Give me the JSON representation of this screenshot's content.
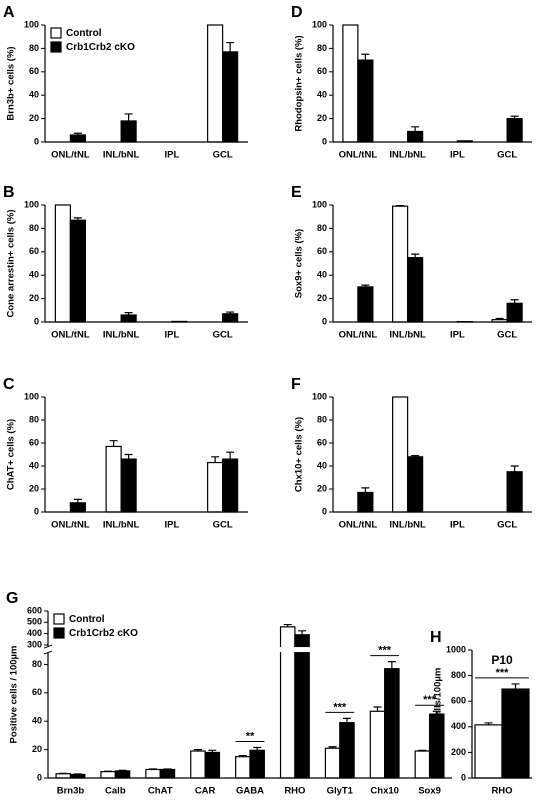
{
  "chart_data": [
    {
      "type": "bar",
      "label": "A",
      "ylabel": "Brn3b+ cells (%)",
      "categories": [
        "ONL/tNL",
        "INL/bNL",
        "IPL",
        "GCL"
      ],
      "ylim": [
        0,
        100
      ],
      "yticks": [
        0,
        20,
        40,
        60,
        80,
        100
      ],
      "legend": "upper left",
      "series": [
        {
          "name": "Control",
          "color": "#ffffff",
          "values": [
            0,
            0,
            0,
            100
          ],
          "errors": [
            null,
            null,
            null,
            null
          ]
        },
        {
          "name": "Crb1Crb2 cKO",
          "color": "#000000",
          "values": [
            6,
            18,
            0,
            77
          ],
          "errors": [
            1.5,
            6,
            null,
            8
          ]
        }
      ]
    },
    {
      "type": "bar",
      "label": "B",
      "ylabel": "Cone arrestin+ cells (%)",
      "categories": [
        "ONL/tNL",
        "INL/bNL",
        "IPL",
        "GCL"
      ],
      "ylim": [
        0,
        100
      ],
      "yticks": [
        0,
        20,
        40,
        60,
        80,
        100
      ],
      "series": [
        {
          "color": "#ffffff",
          "values": [
            100,
            0,
            0,
            0
          ],
          "errors": [
            null,
            null,
            null,
            null
          ]
        },
        {
          "color": "#000000",
          "values": [
            87,
            6,
            0.5,
            7
          ],
          "errors": [
            2,
            2,
            null,
            1.5
          ]
        }
      ]
    },
    {
      "type": "bar",
      "label": "C",
      "ylabel": "ChAT+ cells (%)",
      "categories": [
        "ONL/tNL",
        "INL/bNL",
        "IPL",
        "GCL"
      ],
      "ylim": [
        0,
        100
      ],
      "yticks": [
        0,
        20,
        40,
        60,
        80,
        100
      ],
      "series": [
        {
          "color": "#ffffff",
          "values": [
            0,
            57,
            0,
            43
          ],
          "errors": [
            null,
            5,
            null,
            5
          ]
        },
        {
          "color": "#000000",
          "values": [
            8,
            46,
            0,
            46
          ],
          "errors": [
            3,
            4,
            null,
            6
          ]
        }
      ]
    },
    {
      "type": "bar",
      "label": "D",
      "ylabel": "Rhodopsin+ cells (%)",
      "categories": [
        "ONL/tNL",
        "INL/bNL",
        "IPL",
        "GCL"
      ],
      "ylim": [
        0,
        100
      ],
      "yticks": [
        0,
        20,
        40,
        60,
        80,
        100
      ],
      "series": [
        {
          "color": "#ffffff",
          "values": [
            100,
            0,
            0,
            0
          ],
          "errors": [
            null,
            null,
            null,
            null
          ]
        },
        {
          "color": "#000000",
          "values": [
            70,
            9,
            1,
            20
          ],
          "errors": [
            5,
            4,
            null,
            2
          ]
        }
      ]
    },
    {
      "type": "bar",
      "label": "E",
      "ylabel": "Sox9+ cells (%)",
      "categories": [
        "ONL/tNL",
        "INL/bNL",
        "IPL",
        "GCL"
      ],
      "ylim": [
        0,
        100
      ],
      "yticks": [
        0,
        20,
        40,
        60,
        80,
        100
      ],
      "series": [
        {
          "color": "#ffffff",
          "values": [
            0,
            99,
            0,
            2
          ],
          "errors": [
            null,
            0.5,
            null,
            1
          ]
        },
        {
          "color": "#000000",
          "values": [
            30,
            55,
            0.3,
            16
          ],
          "errors": [
            1.5,
            3,
            null,
            3
          ]
        }
      ]
    },
    {
      "type": "bar",
      "label": "F",
      "ylabel": "Chx10+ cells (%)",
      "categories": [
        "ONL/tNL",
        "INL/bNL",
        "IPL",
        "GCL"
      ],
      "ylim": [
        0,
        100
      ],
      "yticks": [
        0,
        20,
        40,
        60,
        80,
        100
      ],
      "series": [
        {
          "color": "#ffffff",
          "values": [
            0,
            100,
            0,
            0
          ],
          "errors": [
            null,
            null,
            null,
            null
          ]
        },
        {
          "color": "#000000",
          "values": [
            17,
            48,
            0,
            35
          ],
          "errors": [
            4,
            1,
            null,
            5
          ]
        }
      ]
    },
    {
      "type": "bar",
      "label": "G",
      "ylabel": "Positive cells / 100µm",
      "categories": [
        "Brn3b",
        "Calb",
        "ChAT",
        "CAR",
        "GABA",
        "RHO",
        "GlyT1",
        "Chx10",
        "Sox9"
      ],
      "ylim": [
        0,
        600
      ],
      "ybreak": [
        88,
        290
      ],
      "yticks": [
        0,
        20,
        40,
        60,
        80,
        300,
        400,
        500,
        600
      ],
      "legend": "upper left",
      "series": [
        {
          "name": "Control",
          "color": "#ffffff",
          "values": [
            3,
            4.5,
            6,
            19,
            15,
            460,
            21,
            47,
            19
          ],
          "errors": [
            0.3,
            0.3,
            0.4,
            1,
            0.8,
            20,
            1,
            3,
            0.5
          ]
        },
        {
          "name": "Crb1Crb2 cKO",
          "color": "#000000",
          "values": [
            2.5,
            5,
            6,
            18,
            19.5,
            390,
            39,
            77,
            45
          ],
          "errors": [
            0.3,
            0.4,
            0.4,
            1.5,
            2,
            35,
            3,
            5,
            2
          ]
        }
      ],
      "annotations": [
        {
          "text": "**",
          "category": "GABA"
        },
        {
          "text": "***",
          "category": "GlyT1"
        },
        {
          "text": "***",
          "category": "Chx10"
        },
        {
          "text": "***",
          "category": "Sox9"
        }
      ]
    },
    {
      "type": "bar",
      "label": "H",
      "title": "P10",
      "ylabel": "Positive cells/100µm",
      "categories": [
        "RHO"
      ],
      "ylim": [
        0,
        1000
      ],
      "yticks": [
        0,
        200,
        400,
        600,
        800,
        1000
      ],
      "series": [
        {
          "color": "#ffffff",
          "values": [
            415
          ],
          "errors": [
            15
          ]
        },
        {
          "color": "#000000",
          "values": [
            695
          ],
          "errors": [
            40
          ]
        }
      ],
      "annotations": [
        {
          "text": "***",
          "category": "RHO"
        }
      ]
    }
  ]
}
